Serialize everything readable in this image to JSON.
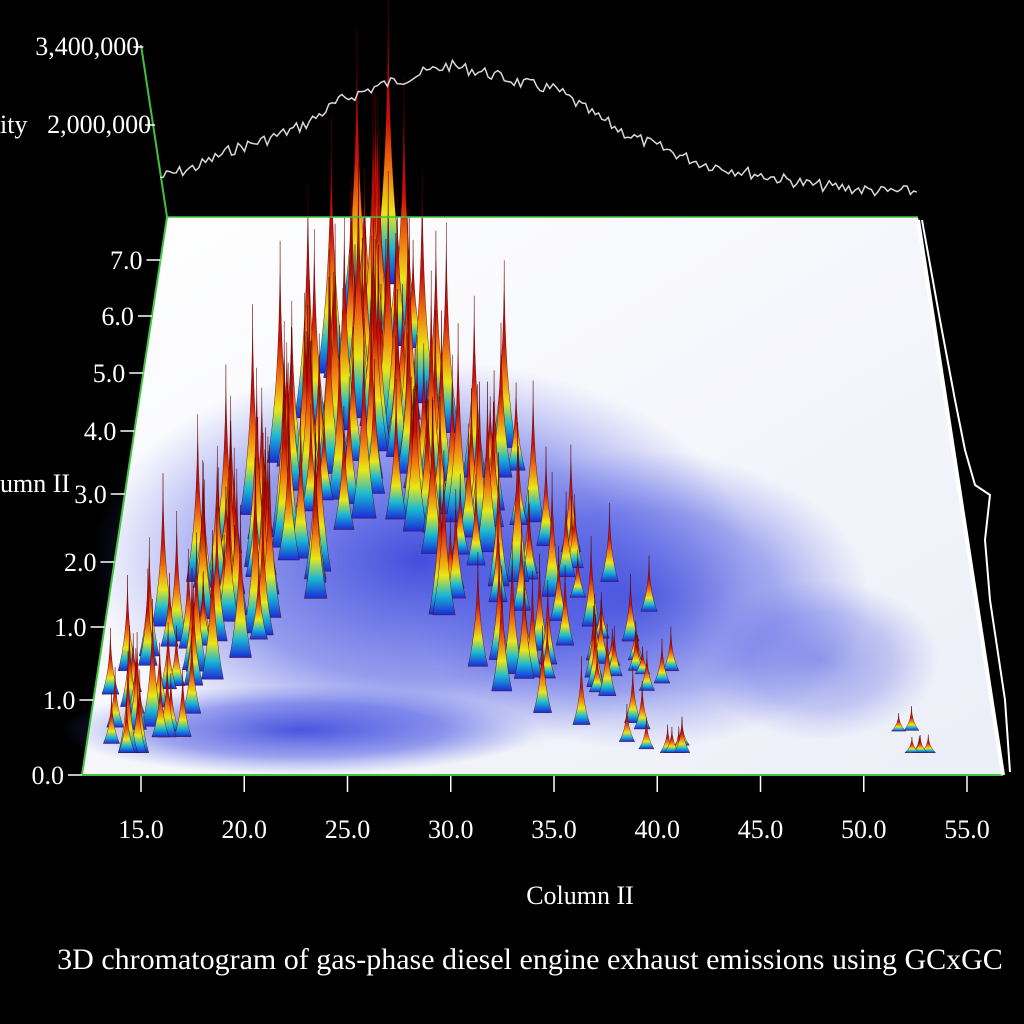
{
  "chart_data": {
    "type": "surface",
    "title": "3D chromatogram of gas-phase diesel engine exhaust emissions using GCxGC",
    "xlabel": "Column II",
    "ylabel": "umn II",
    "zlabel": "ity",
    "x_ticks": [
      "15.0",
      "20.0",
      "25.0",
      "30.0",
      "35.0",
      "40.0",
      "45.0",
      "50.0",
      "55.0"
    ],
    "y_ticks": [
      "0.0",
      "1.0",
      "1.0",
      "2.0",
      "3.0",
      "4.0",
      "5.0",
      "6.0",
      "7.0"
    ],
    "z_ticks": [
      "2,000,000",
      "3,400,000"
    ],
    "xlim": [
      12.0,
      57.0
    ],
    "ylim": [
      0.0,
      7.5
    ],
    "total_ion_profile": {
      "x": [
        13,
        15,
        17,
        19,
        21,
        23,
        25,
        27,
        29,
        31,
        33,
        35,
        37,
        39,
        41,
        43,
        45,
        47,
        49,
        51,
        53,
        55
      ],
      "intensity": [
        1650000,
        1800000,
        2050000,
        2200000,
        2400000,
        2750000,
        2950000,
        3100000,
        3250000,
        3150000,
        3000000,
        2900000,
        2550000,
        2250000,
        2050000,
        1850000,
        1750000,
        1650000,
        1550000,
        1500000,
        1450000,
        1450000
      ]
    },
    "peaks": [
      {
        "x": 13.5,
        "y": 1.4,
        "h": 0.3
      },
      {
        "x": 14.5,
        "y": 1.6,
        "h": 0.38
      },
      {
        "x": 15.0,
        "y": 2.0,
        "h": 0.5
      },
      {
        "x": 15.8,
        "y": 1.8,
        "h": 0.42
      },
      {
        "x": 16.5,
        "y": 2.6,
        "h": 0.55
      },
      {
        "x": 17.0,
        "y": 2.1,
        "h": 0.52
      },
      {
        "x": 17.8,
        "y": 3.0,
        "h": 0.62
      },
      {
        "x": 18.3,
        "y": 2.4,
        "h": 0.58
      },
      {
        "x": 19.0,
        "y": 3.5,
        "h": 0.7
      },
      {
        "x": 19.5,
        "y": 2.8,
        "h": 0.66
      },
      {
        "x": 20.2,
        "y": 4.2,
        "h": 0.74
      },
      {
        "x": 20.8,
        "y": 3.2,
        "h": 0.72
      },
      {
        "x": 21.5,
        "y": 4.8,
        "h": 0.78
      },
      {
        "x": 22.0,
        "y": 3.6,
        "h": 0.76
      },
      {
        "x": 22.6,
        "y": 5.4,
        "h": 0.86
      },
      {
        "x": 23.2,
        "y": 4.2,
        "h": 0.8
      },
      {
        "x": 23.8,
        "y": 6.2,
        "h": 0.96
      },
      {
        "x": 24.3,
        "y": 4.8,
        "h": 0.86
      },
      {
        "x": 24.9,
        "y": 5.6,
        "h": 0.9
      },
      {
        "x": 25.5,
        "y": 6.6,
        "h": 1.0
      },
      {
        "x": 26.0,
        "y": 4.6,
        "h": 0.88
      },
      {
        "x": 26.6,
        "y": 5.8,
        "h": 0.9
      },
      {
        "x": 27.2,
        "y": 4.4,
        "h": 0.8
      },
      {
        "x": 27.8,
        "y": 5.0,
        "h": 0.78
      },
      {
        "x": 28.5,
        "y": 3.8,
        "h": 0.74
      },
      {
        "x": 29.2,
        "y": 4.6,
        "h": 0.7
      },
      {
        "x": 30.0,
        "y": 3.4,
        "h": 0.66
      },
      {
        "x": 30.8,
        "y": 4.0,
        "h": 0.6
      },
      {
        "x": 31.6,
        "y": 3.0,
        "h": 0.56
      },
      {
        "x": 32.4,
        "y": 4.4,
        "h": 0.62
      },
      {
        "x": 33.2,
        "y": 2.6,
        "h": 0.52
      },
      {
        "x": 34.0,
        "y": 3.4,
        "h": 0.46
      },
      {
        "x": 35.0,
        "y": 2.4,
        "h": 0.4
      },
      {
        "x": 36.0,
        "y": 3.0,
        "h": 0.34
      },
      {
        "x": 37.0,
        "y": 2.0,
        "h": 0.28
      },
      {
        "x": 38.0,
        "y": 2.6,
        "h": 0.24
      },
      {
        "x": 39.0,
        "y": 1.8,
        "h": 0.2
      },
      {
        "x": 40.0,
        "y": 2.2,
        "h": 0.16
      },
      {
        "x": 41.0,
        "y": 1.4,
        "h": 0.12
      },
      {
        "x": 52.8,
        "y": 0.6,
        "h": 0.05
      }
    ],
    "colorscale": [
      "#1a2ad6",
      "#19b8d6",
      "#e8e816",
      "#f07a10",
      "#c81208",
      "#8a0000"
    ],
    "colors": {
      "frame": "#3ec43e",
      "background": "#000000",
      "plane": "#f4f4fb",
      "axis_text": "#ffffff"
    }
  }
}
